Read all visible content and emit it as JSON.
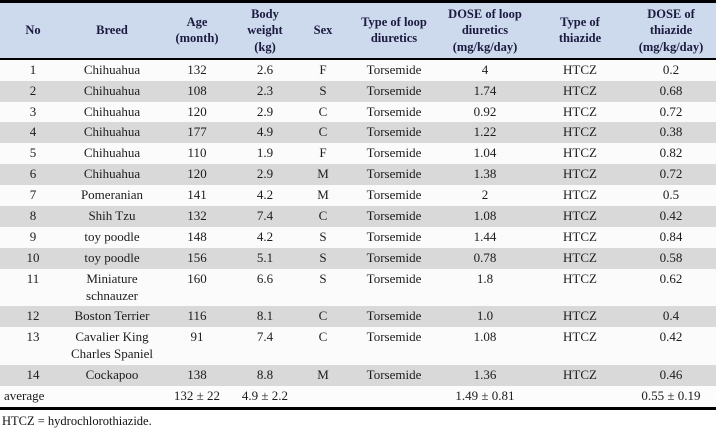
{
  "colors": {
    "header_bg": "#cdd9ec",
    "row_alt_bg": "#d9d9d9",
    "row_bg": "#fbfbfb",
    "border": "#000000",
    "header_text": "#1b1b40"
  },
  "table": {
    "column_keys": [
      "no",
      "breed",
      "age_month",
      "body_weight_kg",
      "sex",
      "loop_diuretic_type",
      "loop_diuretic_dose",
      "thiazide_type",
      "thiazide_dose"
    ],
    "columns": [
      "No",
      "Breed",
      "Age\n(month)",
      "Body\nweight\n(kg)",
      "Sex",
      "Type of loop\ndiuretics",
      "DOSE of loop\ndiuretics\n(mg/kg/day)",
      "Type of\nthiazide",
      "DOSE of\nthiazide\n(mg/kg/day)"
    ],
    "rows": [
      [
        "1",
        "Chihuahua",
        "132",
        "2.6",
        "F",
        "Torsemide",
        "4",
        "HTCZ",
        "0.2"
      ],
      [
        "2",
        "Chihuahua",
        "108",
        "2.3",
        "S",
        "Torsemide",
        "1.74",
        "HTCZ",
        "0.68"
      ],
      [
        "3",
        "Chihuahua",
        "120",
        "2.9",
        "C",
        "Torsemide",
        "0.92",
        "HTCZ",
        "0.72"
      ],
      [
        "4",
        "Chihuahua",
        "177",
        "4.9",
        "C",
        "Torsemide",
        "1.22",
        "HTCZ",
        "0.38"
      ],
      [
        "5",
        "Chihuahua",
        "110",
        "1.9",
        "F",
        "Torsemide",
        "1.04",
        "HTCZ",
        "0.82"
      ],
      [
        "6",
        "Chihuahua",
        "120",
        "2.9",
        "M",
        "Torsemide",
        "1.38",
        "HTCZ",
        "0.72"
      ],
      [
        "7",
        "Pomeranian",
        "141",
        "4.2",
        "M",
        "Torsemide",
        "2",
        "HTCZ",
        "0.5"
      ],
      [
        "8",
        "Shih Tzu",
        "132",
        "7.4",
        "C",
        "Torsemide",
        "1.08",
        "HTCZ",
        "0.42"
      ],
      [
        "9",
        "toy poodle",
        "148",
        "4.2",
        "S",
        "Torsemide",
        "1.44",
        "HTCZ",
        "0.84"
      ],
      [
        "10",
        "toy poodle",
        "156",
        "5.1",
        "S",
        "Torsemide",
        "0.78",
        "HTCZ",
        "0.58"
      ],
      [
        "11",
        "Miniature schnauzer",
        "160",
        "6.6",
        "S",
        "Torsemide",
        "1.8",
        "HTCZ",
        "0.62"
      ],
      [
        "12",
        "Boston Terrier",
        "116",
        "8.1",
        "C",
        "Torsemide",
        "1.0",
        "HTCZ",
        "0.4"
      ],
      [
        "13",
        "Cavalier King Charles Spaniel",
        "91",
        "7.4",
        "C",
        "Torsemide",
        "1.08",
        "HTCZ",
        "0.42"
      ],
      [
        "14",
        "Cockapoo",
        "138",
        "8.8",
        "M",
        "Torsemide",
        "1.36",
        "HTCZ",
        "0.46"
      ]
    ],
    "average": [
      "average",
      "",
      "132 ± 22",
      "4.9 ± 2.2",
      "",
      "",
      "1.49 ± 0.81",
      "",
      "0.55 ± 0.19"
    ],
    "footnote": "HTCZ = hydrochlorothiazide."
  }
}
